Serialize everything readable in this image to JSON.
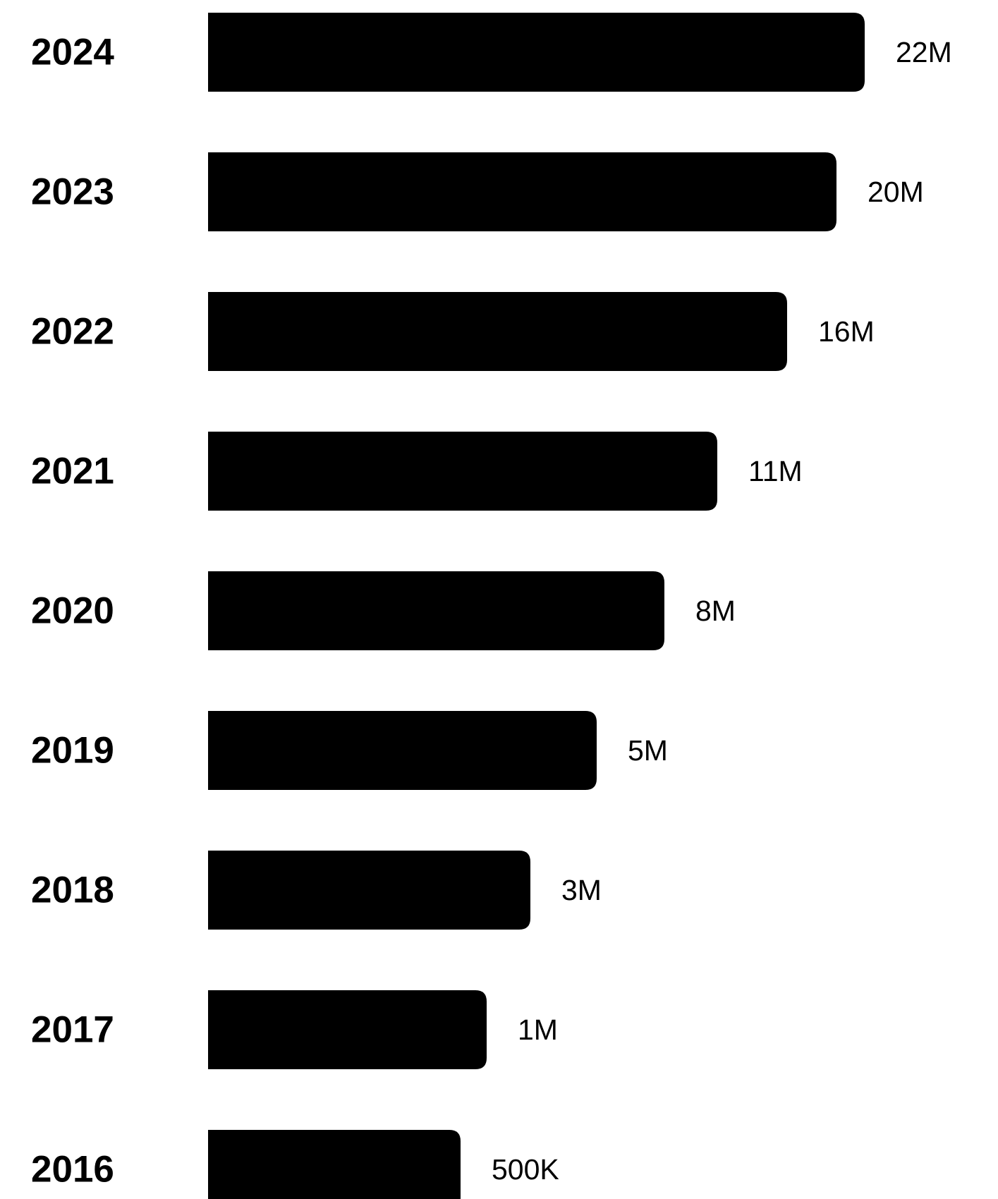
{
  "chart_data": {
    "type": "bar",
    "orientation": "horizontal",
    "title": "",
    "xlabel": "",
    "ylabel": "",
    "grid": false,
    "categories": [
      "2024",
      "2023",
      "2022",
      "2021",
      "2020",
      "2019",
      "2018",
      "2017",
      "2016"
    ],
    "values": [
      22000000,
      20000000,
      16000000,
      11000000,
      8000000,
      5000000,
      3000000,
      1000000,
      500000
    ],
    "data_labels": [
      "22M",
      "20M",
      "16M",
      "11M",
      "8M",
      "5M",
      "3M",
      "1M",
      "500K"
    ],
    "colors": {
      "bar": "#000000",
      "text": "#000000",
      "background": "#ffffff"
    }
  }
}
